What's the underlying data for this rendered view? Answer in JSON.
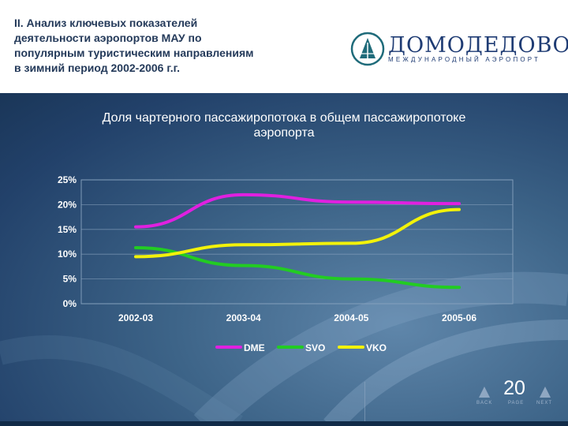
{
  "heading": {
    "lines": [
      "II. Анализ ключевых показателей",
      "деятельности аэропортов МАУ по",
      "популярным туристическим направлениям",
      "в зимний период 2002-2006 г.г."
    ]
  },
  "logo": {
    "name": "ДОМОДЕДОВО",
    "subtitle": "МЕЖДУНАРОДНЫЙ АЭРОПОРТ"
  },
  "chart_data": {
    "type": "line",
    "title_lines": [
      "Доля чартерного пассажиропотока в общем пассажиропотоке",
      "аэропорта"
    ],
    "categories": [
      "2002-03",
      "2003-04",
      "2004-05",
      "2005-06"
    ],
    "y_ticks": [
      "0%",
      "5%",
      "10%",
      "15%",
      "20%",
      "25%"
    ],
    "ylim": [
      0,
      25
    ],
    "grid": true,
    "legend_position": "bottom",
    "series": [
      {
        "name": "DME",
        "color": "#e020e0",
        "values": [
          15.5,
          22.0,
          20.5,
          20.2
        ]
      },
      {
        "name": "SVO",
        "color": "#22cc22",
        "values": [
          11.3,
          7.7,
          5.0,
          3.3
        ]
      },
      {
        "name": "VKO",
        "color": "#f2f20a",
        "values": [
          9.5,
          11.9,
          12.2,
          19.0
        ]
      }
    ]
  },
  "pager": {
    "page_number": "20",
    "back_label": "BACK",
    "page_label": "PAGE",
    "next_label": "NEXT"
  }
}
